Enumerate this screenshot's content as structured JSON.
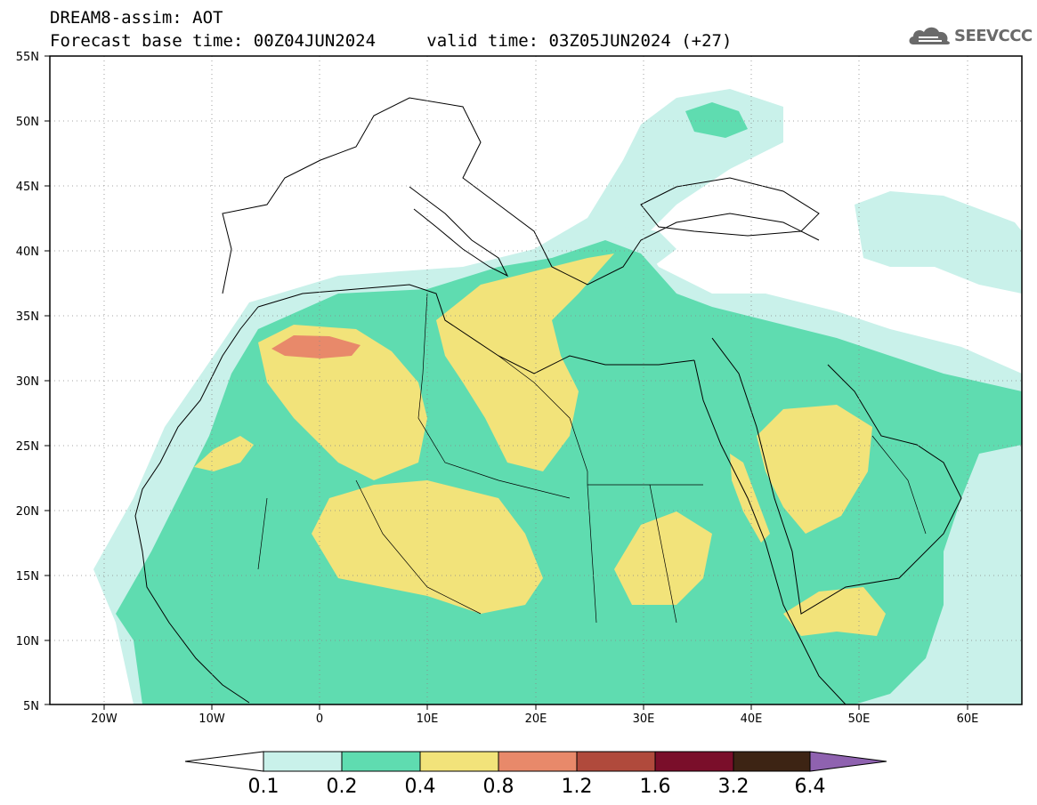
{
  "header": {
    "product": "DREAM8-assim: AOT",
    "base_time_label": "Forecast base time: 00Z04JUN2024",
    "valid_time_label": "valid time: 03Z05JUN2024 (+27)"
  },
  "logo": {
    "text": "SEEVCCC",
    "icon": "cloud-icon"
  },
  "map": {
    "lat_range": [
      5,
      55
    ],
    "lon_range": [
      -25,
      65
    ],
    "lat_ticks": [
      "55N",
      "50N",
      "45N",
      "40N",
      "35N",
      "30N",
      "25N",
      "20N",
      "15N",
      "10N",
      "5N"
    ],
    "lon_ticks": [
      "20W",
      "10W",
      "0",
      "10E",
      "20E",
      "30E",
      "40E",
      "50E",
      "60E"
    ],
    "grid": true
  },
  "colorbar": {
    "labels": [
      "0.1",
      "0.2",
      "0.4",
      "0.8",
      "1.2",
      "1.6",
      "3.2",
      "6.4"
    ],
    "colors": [
      "#c9f1ea",
      "#5fdcb0",
      "#f2e37a",
      "#e8896a",
      "#b04a3c",
      "#7a0e2a",
      "#3d2414",
      "#8f62b0"
    ]
  }
}
